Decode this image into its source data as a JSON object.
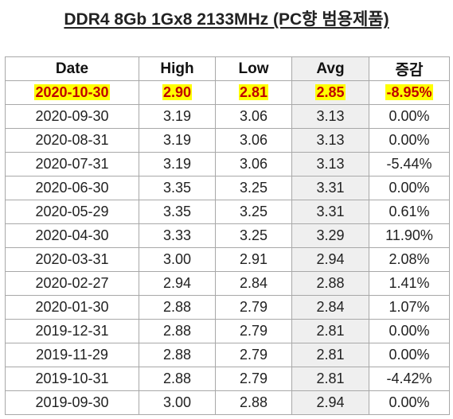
{
  "title": "DDR4 8Gb 1Gx8 2133MHz (PC향 범용제품)",
  "colors": {
    "highlight_text": "#c00000",
    "highlight_bg": "#ffff00",
    "avg_column_bg": "#efefef"
  },
  "table": {
    "headers": [
      "Date",
      "High",
      "Low",
      "Avg",
      "증감"
    ],
    "highlight_row": {
      "date": "2020-10-30",
      "high": "2.90",
      "low": "2.81",
      "avg": "2.85",
      "change": "-8.95%"
    },
    "rows": [
      {
        "date": "2020-09-30",
        "high": "3.19",
        "low": "3.06",
        "avg": "3.13",
        "change": "0.00%"
      },
      {
        "date": "2020-08-31",
        "high": "3.19",
        "low": "3.06",
        "avg": "3.13",
        "change": "0.00%"
      },
      {
        "date": "2020-07-31",
        "high": "3.19",
        "low": "3.06",
        "avg": "3.13",
        "change": "-5.44%"
      },
      {
        "date": "2020-06-30",
        "high": "3.35",
        "low": "3.25",
        "avg": "3.31",
        "change": "0.00%"
      },
      {
        "date": "2020-05-29",
        "high": "3.35",
        "low": "3.25",
        "avg": "3.31",
        "change": "0.61%"
      },
      {
        "date": "2020-04-30",
        "high": "3.33",
        "low": "3.25",
        "avg": "3.29",
        "change": "11.90%"
      },
      {
        "date": "2020-03-31",
        "high": "3.00",
        "low": "2.91",
        "avg": "2.94",
        "change": "2.08%"
      },
      {
        "date": "2020-02-27",
        "high": "2.94",
        "low": "2.84",
        "avg": "2.88",
        "change": "1.41%"
      },
      {
        "date": "2020-01-30",
        "high": "2.88",
        "low": "2.79",
        "avg": "2.84",
        "change": "1.07%"
      },
      {
        "date": "2019-12-31",
        "high": "2.88",
        "low": "2.79",
        "avg": "2.81",
        "change": "0.00%"
      },
      {
        "date": "2019-11-29",
        "high": "2.88",
        "low": "2.79",
        "avg": "2.81",
        "change": "0.00%"
      },
      {
        "date": "2019-10-31",
        "high": "2.88",
        "low": "2.79",
        "avg": "2.81",
        "change": "-4.42%"
      },
      {
        "date": "2019-09-30",
        "high": "3.00",
        "low": "2.88",
        "avg": "2.94",
        "change": "0.00%"
      }
    ]
  }
}
